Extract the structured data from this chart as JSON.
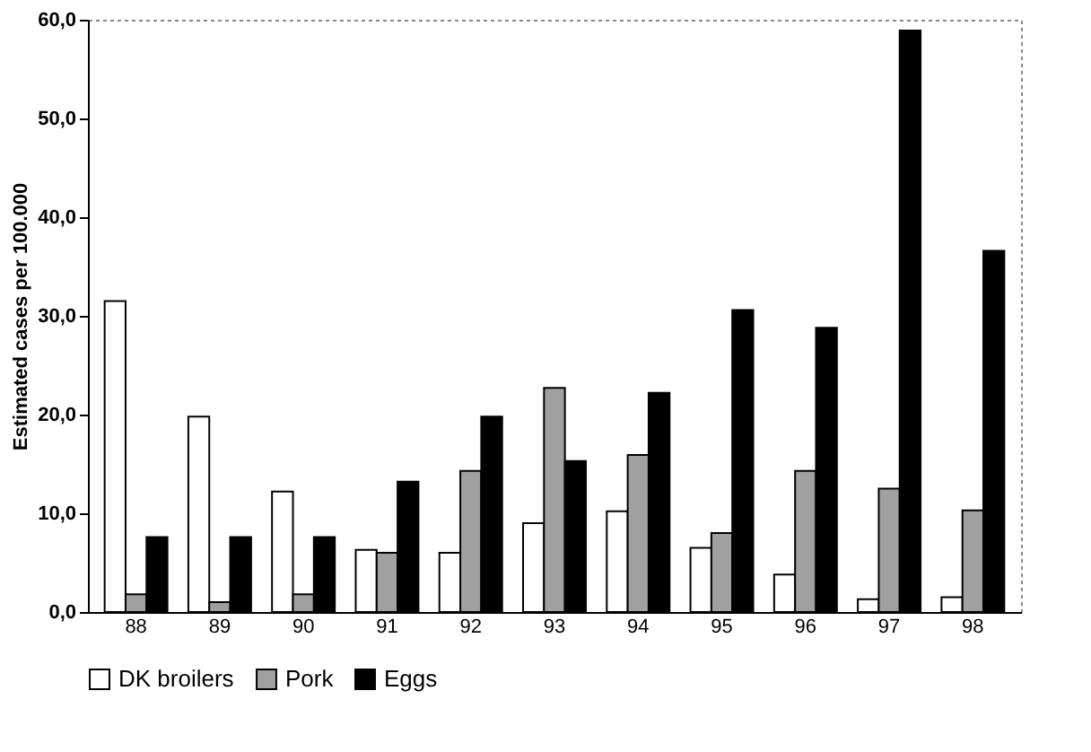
{
  "chart_data": {
    "type": "bar",
    "ylabel": "Estimated cases per 100.000",
    "categories": [
      "88",
      "89",
      "90",
      "91",
      "92",
      "93",
      "94",
      "95",
      "96",
      "97",
      "98"
    ],
    "series": [
      {
        "name": "DK broilers",
        "color": "#ffffff",
        "values": [
          31.5,
          19.8,
          12.2,
          6.3,
          6.0,
          9.0,
          10.2,
          6.5,
          3.8,
          1.3,
          1.5
        ]
      },
      {
        "name": "Pork",
        "color": "#a0a0a0",
        "values": [
          1.8,
          1.0,
          1.8,
          6.0,
          14.3,
          22.7,
          15.9,
          8.0,
          14.3,
          12.5,
          10.3
        ]
      },
      {
        "name": "Eggs",
        "color": "#000000",
        "values": [
          7.6,
          7.6,
          7.6,
          13.2,
          19.8,
          15.3,
          22.2,
          30.6,
          28.8,
          58.9,
          36.6
        ]
      }
    ],
    "ylim": [
      0,
      60
    ],
    "yticks": [
      {
        "value": 0,
        "label": "0,0"
      },
      {
        "value": 10,
        "label": "10,0"
      },
      {
        "value": 20,
        "label": "20,0"
      },
      {
        "value": 30,
        "label": "30,0"
      },
      {
        "value": 40,
        "label": "40,0"
      },
      {
        "value": 50,
        "label": "50,0"
      },
      {
        "value": 60,
        "label": "60,0"
      }
    ],
    "grid": false,
    "legend": "bottom"
  }
}
